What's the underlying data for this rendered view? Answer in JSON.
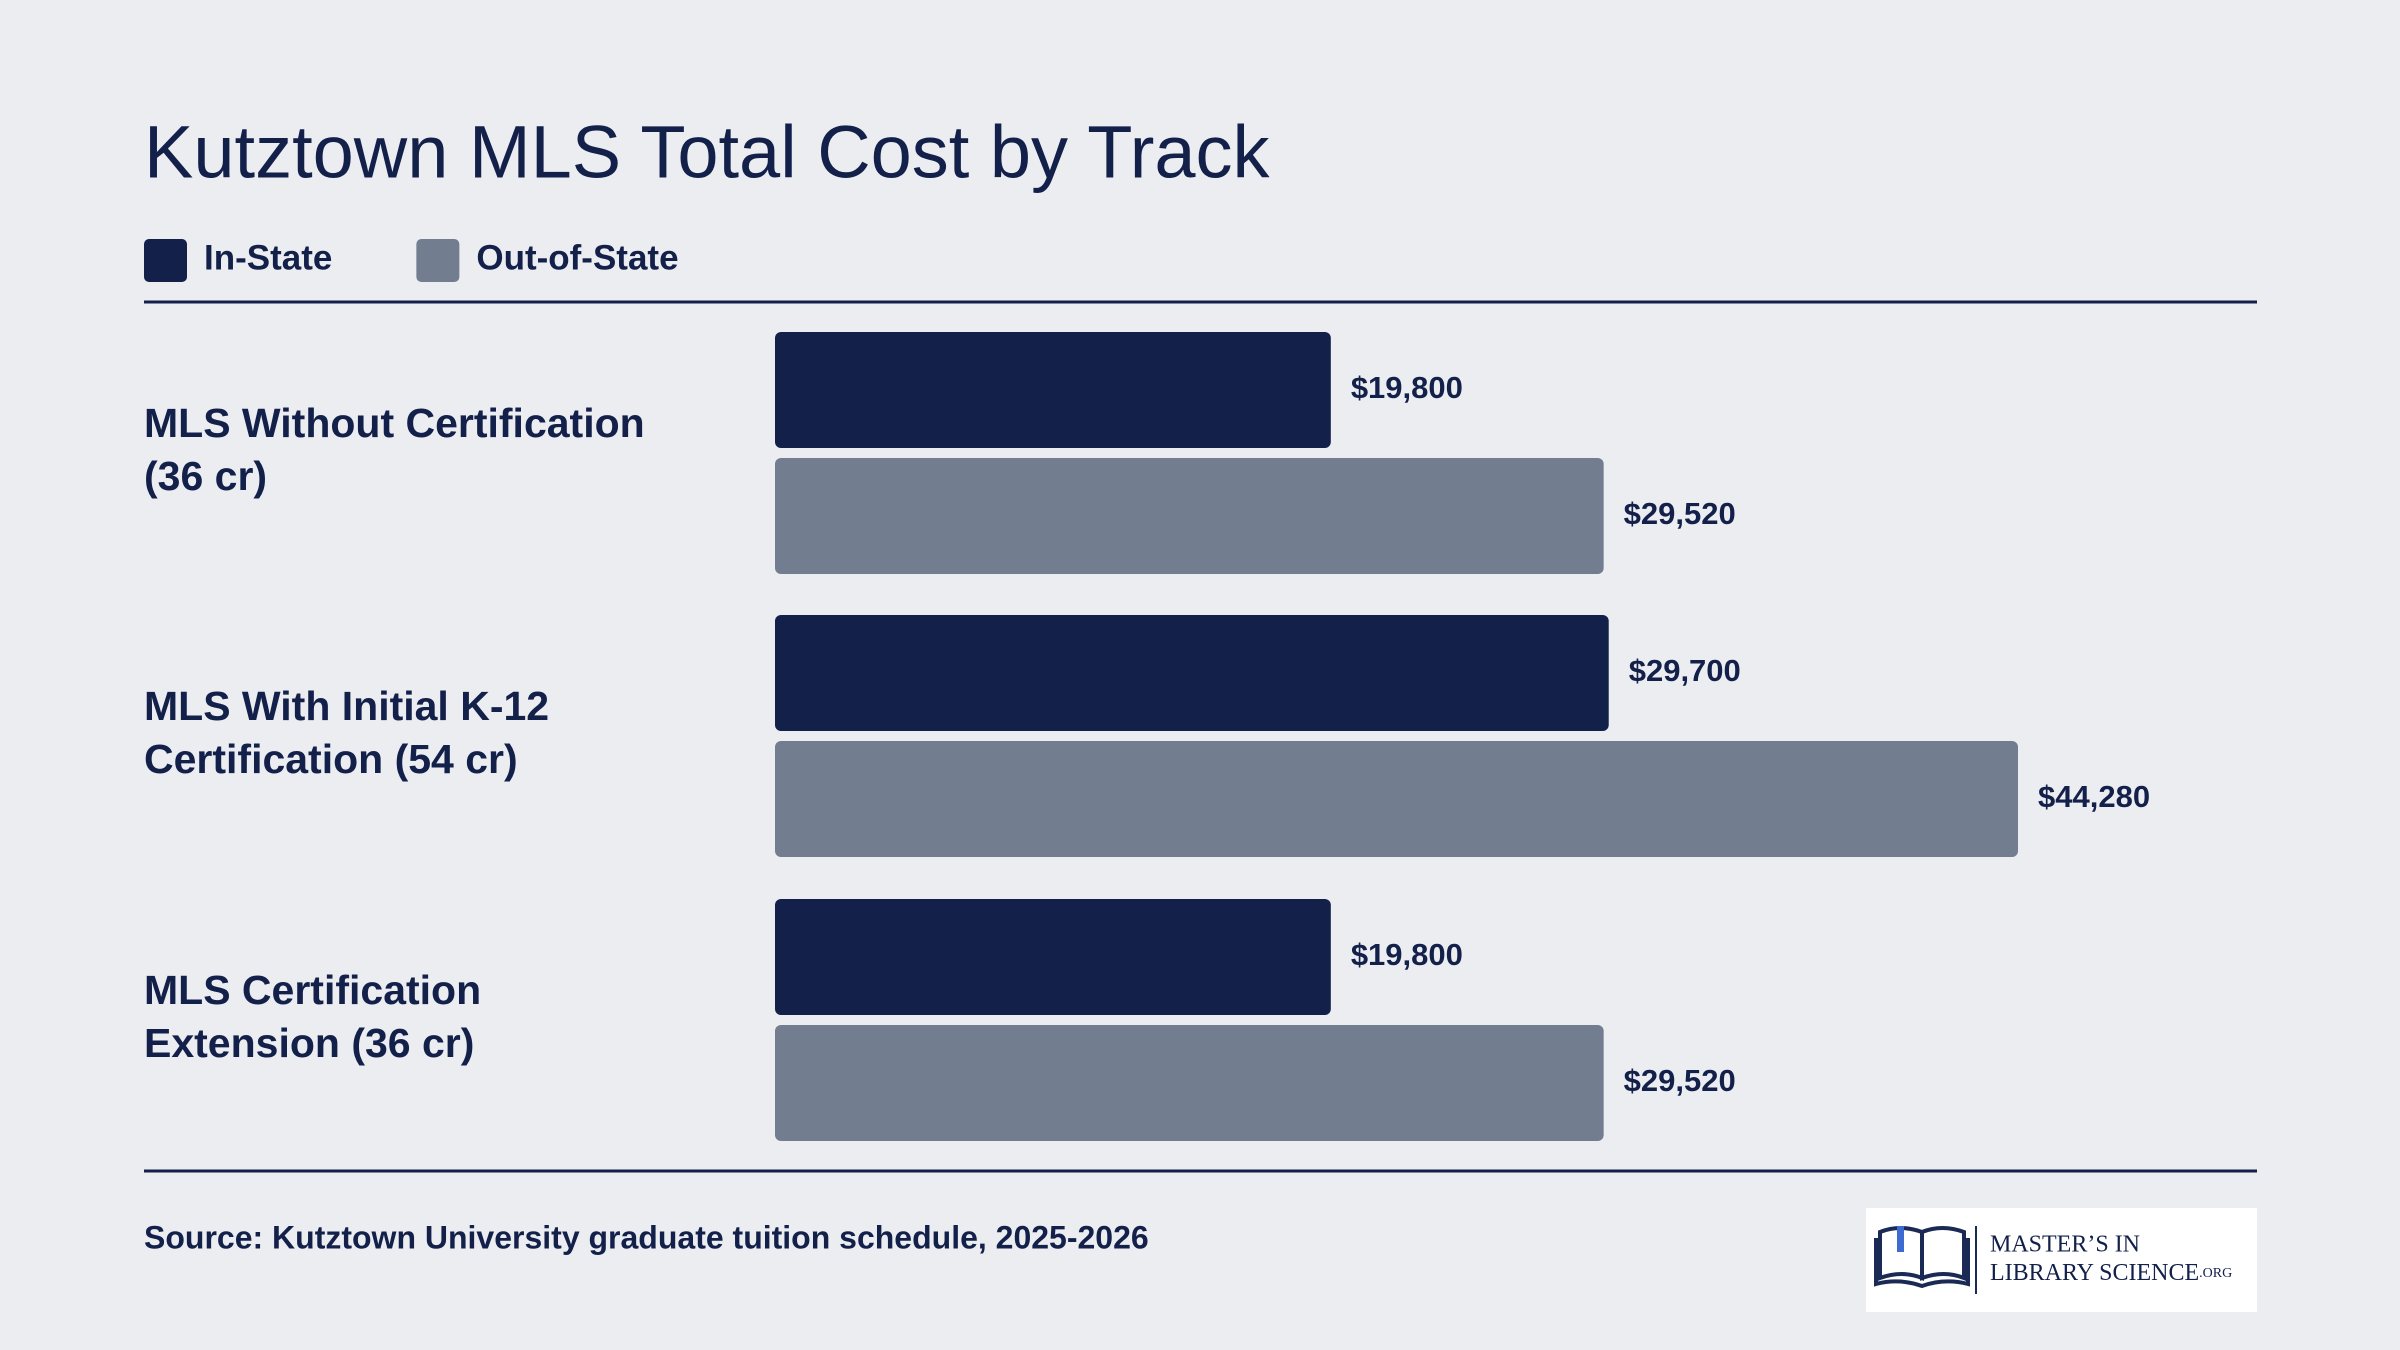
{
  "chart_data": {
    "type": "hbar_grouped",
    "title": "Kutztown MLS Total Cost by Track",
    "categories": [
      [
        "MLS Without Certification",
        "(36 cr)"
      ],
      [
        "MLS With Initial K-12",
        "Certification (54 cr)"
      ],
      [
        "MLS Certification",
        "Extension (36 cr)"
      ]
    ],
    "series": [
      {
        "name": "In-State",
        "color": "#12204a",
        "values": [
          19800,
          29700,
          19800
        ],
        "value_labels": [
          "$19,800",
          "$29,700",
          "$19,800"
        ]
      },
      {
        "name": "Out-of-State",
        "color": "#737d90",
        "values": [
          29520,
          44280,
          29520
        ],
        "value_labels": [
          "$29,520",
          "$44,280",
          "$29,520"
        ]
      }
    ],
    "source": "Source: Kutztown University graduate tuition schedule, 2025-2026"
  },
  "logo": {
    "line1": "MASTER’S IN",
    "line2": "LIBRARY SCIENCE",
    "suffix": ".ORG"
  }
}
